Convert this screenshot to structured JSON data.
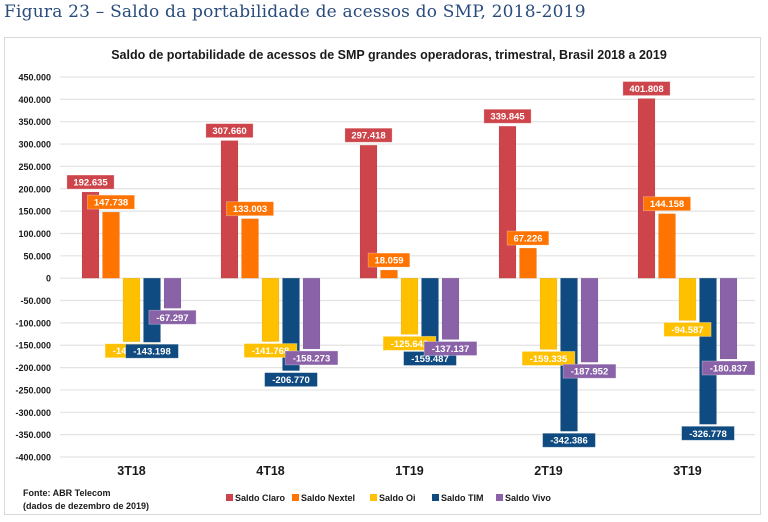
{
  "figure_title": "Figura 23 – Saldo da portabilidade de acessos do SMP, 2018-2019",
  "chart_data": {
    "type": "bar",
    "title": "Saldo de portabilidade de acessos de SMP grandes operadoras, trimestral, Brasil 2018 a 2019",
    "xlabel": "",
    "ylabel": "",
    "categories": [
      "3T18",
      "4T18",
      "1T19",
      "2T19",
      "3T19"
    ],
    "series": [
      {
        "name": "Saldo Claro",
        "color": "#cd444a",
        "values": [
          192635,
          307660,
          297418,
          339845,
          401808
        ],
        "labels": [
          "192.635",
          "307.660",
          "297.418",
          "339.845",
          "401.808"
        ]
      },
      {
        "name": "Saldo Nextel",
        "color": "#ff7400",
        "values": [
          147738,
          133003,
          18059,
          67226,
          144158
        ],
        "labels": [
          "147.738",
          "133.003",
          "18.059",
          "67.226",
          "144.158"
        ]
      },
      {
        "name": "Saldo Oi",
        "color": "#ffc000",
        "values": [
          -142177,
          -141768,
          -125642,
          -159335,
          -94587
        ],
        "labels": [
          "-142.177",
          "-141.768",
          "-125.642",
          "-159.335",
          "-94.587"
        ]
      },
      {
        "name": "Saldo TIM",
        "color": "#0f4a80",
        "values": [
          -143198,
          -206770,
          -159487,
          -342386,
          -326778
        ],
        "labels": [
          "-143.198",
          "-206.770",
          "-159.487",
          "-342.386",
          "-326.778"
        ]
      },
      {
        "name": "Saldo Vivo",
        "color": "#8a62a8",
        "values": [
          -67297,
          -158273,
          -137137,
          -187952,
          -180837
        ],
        "labels": [
          "-67.297",
          "-158.273",
          "-137.137",
          "-187.952",
          "-180.837"
        ]
      }
    ],
    "ylim": [
      -400000,
      450000
    ],
    "yticks": [
      450000,
      400000,
      350000,
      300000,
      250000,
      200000,
      150000,
      100000,
      50000,
      0,
      -50000,
      -100000,
      -150000,
      -200000,
      -250000,
      -300000,
      -350000,
      -400000
    ],
    "ytick_labels": [
      "450.000",
      "400.000",
      "350.000",
      "300.000",
      "250.000",
      "200.000",
      "150.000",
      "100.000",
      "50.000",
      "0",
      "-50.000",
      "-100.000",
      "-150.000",
      "-200.000",
      "-250.000",
      "-300.000",
      "-350.000",
      "-400.000"
    ],
    "grid": true,
    "legend": "bottom-center"
  },
  "source_note": {
    "line1": "Fonte: ABR Telecom",
    "line2": "(dados de dezembro de 2019)"
  }
}
